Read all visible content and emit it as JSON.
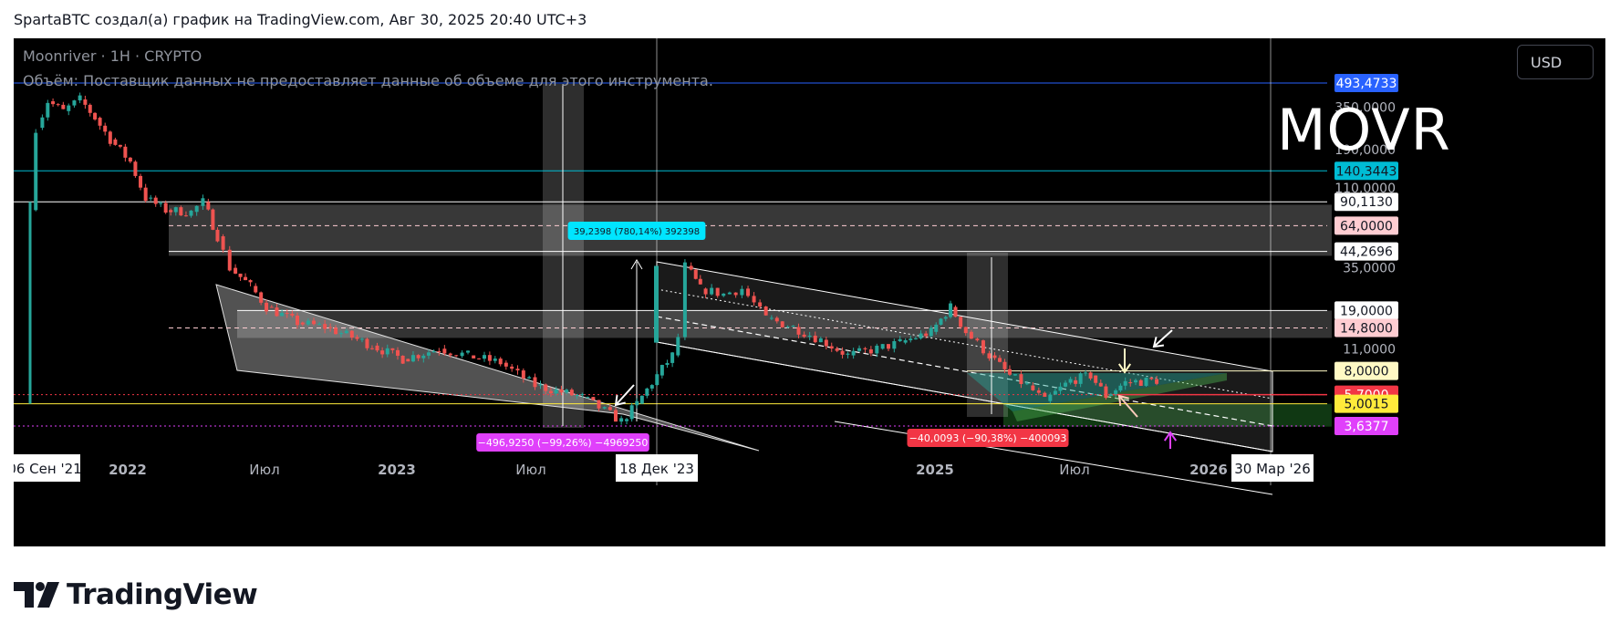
{
  "header": {
    "caption": "SpartaBTC создал(а) график на TradingView.com, Авг 30, 2025 20:40 UTC+3"
  },
  "legend": {
    "symbol_line": "Moonriver · 1H · CRYPTO",
    "volume_line": "Объём: Поставщик данных не предоставляет данные об объеме для этого инструмента."
  },
  "currency_button": "USD",
  "watermark": "MOVR",
  "footer": {
    "brand": "TradingView"
  },
  "colors": {
    "background": "#000000",
    "up_candle": "#26a69a",
    "down_candle": "#ef5350",
    "resistance_blue": "#2962ff",
    "cyan": "#00e5ff",
    "white": "#ffffff",
    "red": "#f23645",
    "yellow": "#ffeb3b",
    "magenta": "#e040fb",
    "teal_zone": "#00897b"
  },
  "chart_data": {
    "type": "candlestick",
    "title": "",
    "instrument": "Moonriver · 1H · CRYPTO",
    "y_scale": "log",
    "x_axis": {
      "ticks": [
        "2022",
        "Июл",
        "2023",
        "Июл",
        "2025",
        "Июл",
        "2026"
      ],
      "highlighted_labels": [
        "06 Сен '21",
        "18 Дек '23",
        "30 Мар '26"
      ]
    },
    "y_axis": {
      "ticks": [
        "350,0000",
        "190,0000",
        "110,0000",
        "35,0000",
        "11,0000"
      ],
      "range": [
        2.5,
        700
      ]
    },
    "price_levels": [
      {
        "value": 493.4733,
        "label": "493,4733",
        "color": "#2962ff",
        "text_color": "#ffffff"
      },
      {
        "value": 140.3443,
        "label": "140,3443",
        "color": "#00bcd4",
        "text_color": "#131722"
      },
      {
        "value": 90.113,
        "label": "90,1130",
        "color": "#ffffff",
        "text_color": "#131722"
      },
      {
        "value": 64.0,
        "label": "64,0000",
        "color": "#ffcdd2",
        "text_color": "#131722"
      },
      {
        "value": 44.2696,
        "label": "44,2696",
        "color": "#ffffff",
        "text_color": "#131722"
      },
      {
        "value": 19.0,
        "label": "19,0000",
        "color": "#ffffff",
        "text_color": "#131722"
      },
      {
        "value": 14.8,
        "label": "14,8000",
        "color": "#ffcdd2",
        "text_color": "#131722"
      },
      {
        "value": 8.0,
        "label": "8,0000",
        "color": "#fff9c4",
        "text_color": "#131722"
      },
      {
        "value": 5.7,
        "label": "5,7000",
        "color": "#f23645",
        "text_color": "#ffffff"
      },
      {
        "value": 5.0015,
        "label": "5,0015",
        "color": "#ffeb3b",
        "text_color": "#131722"
      },
      {
        "value": 3.6377,
        "label": "3,6377",
        "color": "#e040fb",
        "text_color": "#ffffff"
      }
    ],
    "annotations": [
      {
        "text": "39,2398 (780,14%) 392398",
        "kind": "measure-up",
        "color": "#00e5ff"
      },
      {
        "text": "−496,9250 (−99,26%) −4969250",
        "kind": "measure-down",
        "color": "#e040fb"
      },
      {
        "text": "−40,0093 (−90,38%) −400093",
        "kind": "measure-down",
        "color": "#f23645"
      }
    ],
    "series": [
      {
        "name": "MOVR/USD",
        "points": [
          [
            "2021-08-27",
            80
          ],
          [
            "2021-09-06",
            260
          ],
          [
            "2021-09-20",
            380
          ],
          [
            "2021-10-10",
            330
          ],
          [
            "2021-11-01",
            390
          ],
          [
            "2021-11-20",
            300
          ],
          [
            "2021-12-10",
            220
          ],
          [
            "2022-01-05",
            160
          ],
          [
            "2022-01-25",
            95
          ],
          [
            "2022-02-20",
            80
          ],
          [
            "2022-03-25",
            78
          ],
          [
            "2022-04-10",
            90
          ],
          [
            "2022-04-28",
            55
          ],
          [
            "2022-05-15",
            35
          ],
          [
            "2022-06-10",
            27
          ],
          [
            "2022-07-01",
            20
          ],
          [
            "2022-08-10",
            16
          ],
          [
            "2022-09-15",
            15
          ],
          [
            "2022-10-20",
            13
          ],
          [
            "2022-11-15",
            11.5
          ],
          [
            "2022-12-25",
            9.5
          ],
          [
            "2023-02-10",
            11
          ],
          [
            "2023-03-20",
            10
          ],
          [
            "2023-05-01",
            9
          ],
          [
            "2023-06-15",
            6.5
          ],
          [
            "2023-08-15",
            5.5
          ],
          [
            "2023-10-05",
            3.9
          ],
          [
            "2023-10-25",
            5
          ],
          [
            "2023-11-20",
            7.5
          ],
          [
            "2023-12-10",
            10
          ],
          [
            "2023-12-18",
            13
          ],
          [
            "2023-12-28",
            36
          ],
          [
            "2024-01-15",
            26
          ],
          [
            "2024-02-15",
            24
          ],
          [
            "2024-03-10",
            26
          ],
          [
            "2024-04-10",
            17
          ],
          [
            "2024-05-15",
            15
          ],
          [
            "2024-06-20",
            12.5
          ],
          [
            "2024-07-25",
            10
          ],
          [
            "2024-09-01",
            11
          ],
          [
            "2024-10-01",
            12
          ],
          [
            "2024-11-10",
            14
          ],
          [
            "2024-12-05",
            20
          ],
          [
            "2024-12-25",
            14
          ],
          [
            "2025-01-25",
            10
          ],
          [
            "2025-02-20",
            7.5
          ],
          [
            "2025-03-15",
            6.5
          ],
          [
            "2025-04-07",
            5.2
          ],
          [
            "2025-05-10",
            7
          ],
          [
            "2025-06-05",
            7.5
          ],
          [
            "2025-06-25",
            5.6
          ],
          [
            "2025-07-20",
            6.8
          ],
          [
            "2025-08-30",
            7
          ]
        ]
      }
    ]
  }
}
